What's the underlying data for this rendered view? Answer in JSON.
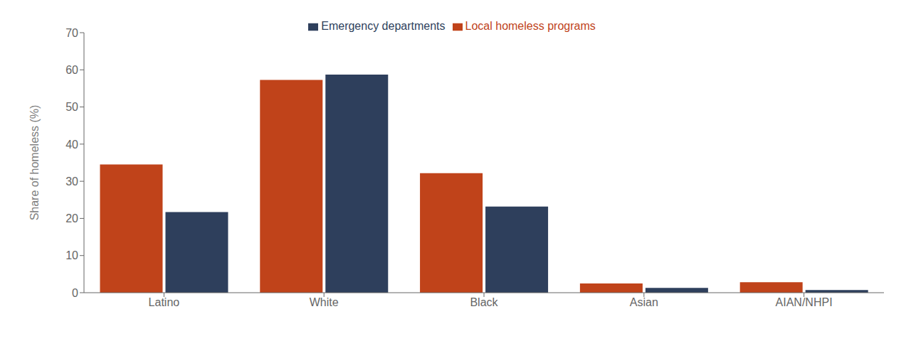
{
  "chart_data": {
    "type": "bar",
    "categories": [
      "Latino",
      "White",
      "Black",
      "Asian",
      "AIAN/NHPI"
    ],
    "series": [
      {
        "name": "Local homeless programs",
        "color": "#C0431A",
        "values": [
          34.5,
          57.3,
          32.2,
          2.5,
          2.8
        ]
      },
      {
        "name": "Emergency departments",
        "color": "#2E3F5C",
        "values": [
          21.7,
          58.7,
          23.2,
          1.3,
          0.7
        ]
      }
    ],
    "ylabel": "Share of homeless (%)",
    "ylim": [
      0,
      70
    ],
    "yticks": [
      0,
      10,
      20,
      30,
      40,
      50,
      60,
      70
    ],
    "legend": "top",
    "grid": false
  }
}
